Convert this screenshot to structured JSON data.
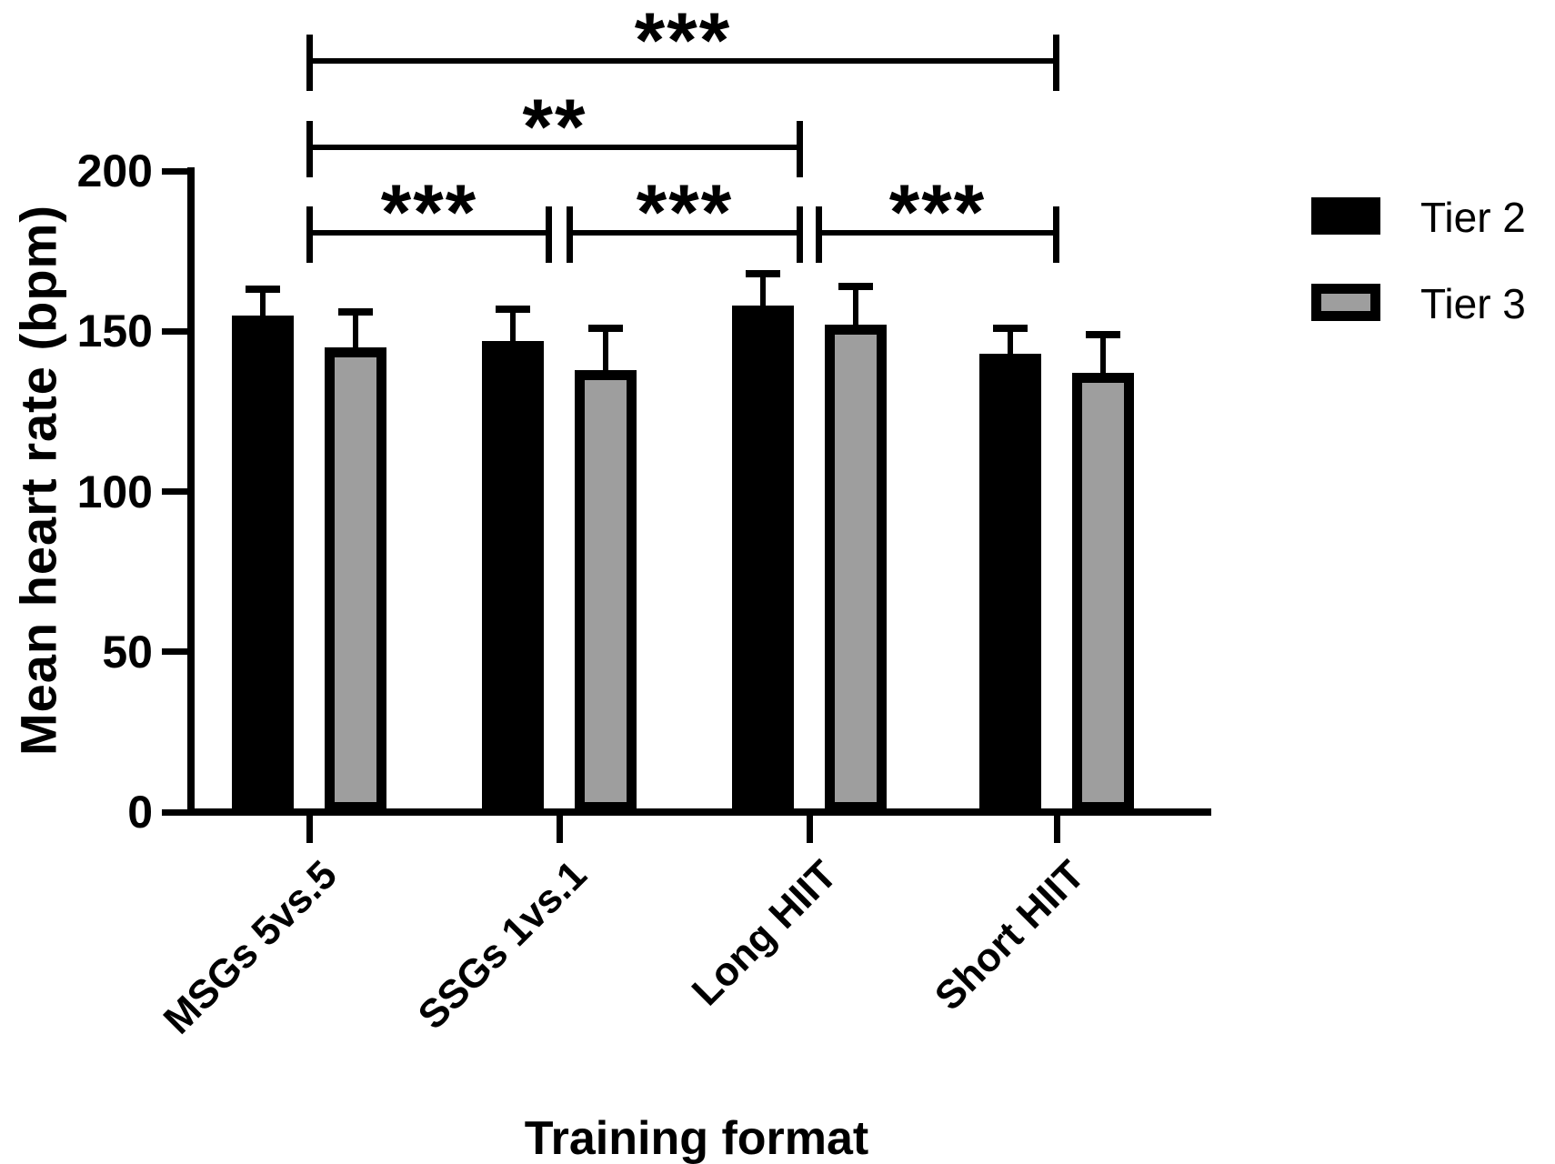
{
  "chart_data": {
    "type": "bar",
    "title": "",
    "xlabel": "Training format",
    "ylabel": "Mean heart rate (bpm)",
    "categories": [
      "MSGs 5vs.5",
      "SSGs 1vs.1",
      "Long HIIT",
      "Short HIIT"
    ],
    "series": [
      {
        "name": "Tier 2",
        "values": [
          155,
          147,
          158,
          143
        ],
        "sd_plus": [
          8,
          10,
          10,
          8
        ],
        "fill": "#000000",
        "border": "#000000"
      },
      {
        "name": "Tier 3",
        "values": [
          145,
          138,
          152,
          137
        ],
        "sd_plus": [
          11,
          13,
          12,
          12
        ],
        "fill": "#9e9e9e",
        "border": "#000000"
      }
    ],
    "ylim": [
      0,
      200
    ],
    "yticks": [
      0,
      50,
      100,
      150,
      200
    ],
    "grid": "off",
    "legend_position": "right",
    "error_bars": "plus-only",
    "significance": [
      {
        "from": "MSGs 5vs.5",
        "to": "Short HIIT",
        "label": "***",
        "row": 0
      },
      {
        "from": "MSGs 5vs.5",
        "to": "Long HIIT",
        "label": "**",
        "row": 1
      },
      {
        "from": "MSGs 5vs.5",
        "to": "SSGs 1vs.1",
        "label": "***",
        "row": 2
      },
      {
        "from": "SSGs 1vs.1",
        "to": "Long HIIT",
        "label": "***",
        "row": 2
      },
      {
        "from": "Long HIIT",
        "to": "Short HIIT",
        "label": "***",
        "row": 2
      }
    ],
    "colors": {
      "tier2": "#000000",
      "tier3_fill": "#9e9e9e",
      "axis": "#000000",
      "text": "#000000"
    }
  }
}
